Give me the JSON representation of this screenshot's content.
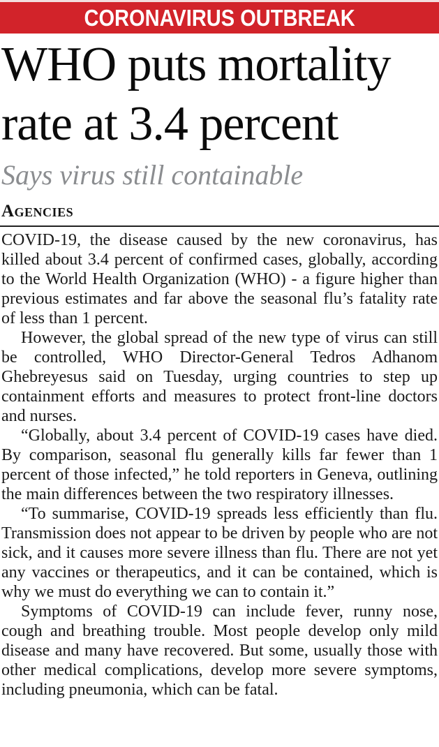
{
  "banner": {
    "label": "CORONAVIRUS OUTBREAK",
    "bg_color": "#d2232a",
    "text_color": "#ffffff"
  },
  "article": {
    "headline": "WHO puts mortality rate at 3.4 percent",
    "subheadline": "Says virus still containable",
    "byline": "Agencies",
    "subheadline_color": "#8b8d90",
    "paragraphs": [
      "COVID-19, the disease caused by the new coronavirus, has killed about 3.4 percent of confirmed cases, globally, according to the World Health Organization (WHO) - a figure higher than previous estimates and far above the seasonal flu’s fatality rate of less than 1 percent.",
      "However, the global spread of the new type of virus can still be controlled, WHO Director-General Tedros Adhanom Ghebreyesus said on Tuesday, urging countries to step up containment efforts and measures to protect front-line doctors and nurses.",
      "“Globally, about 3.4 percent of COVID-19 cases have died. By comparison, seasonal flu generally kills far fewer than 1 percent of those infected,” he told reporters in Geneva, outlining the main differences between the two respiratory illnesses.",
      "“To summarise, COVID-19 spreads less efficiently than flu. Transmission does not appear to be driven by people who are not sick, and it causes more severe illness than flu. There are not yet any vaccines or therapeutics, and it can be contained, which is why we must do everything we can to contain it.”",
      "Symptoms of COVID-19 can include fever, runny nose, cough and breathing trouble. Most people develop only mild disease and many have recovered. But some, usually those with other medical complications, develop more severe symptoms, including pneumonia, which can be fatal."
    ]
  }
}
